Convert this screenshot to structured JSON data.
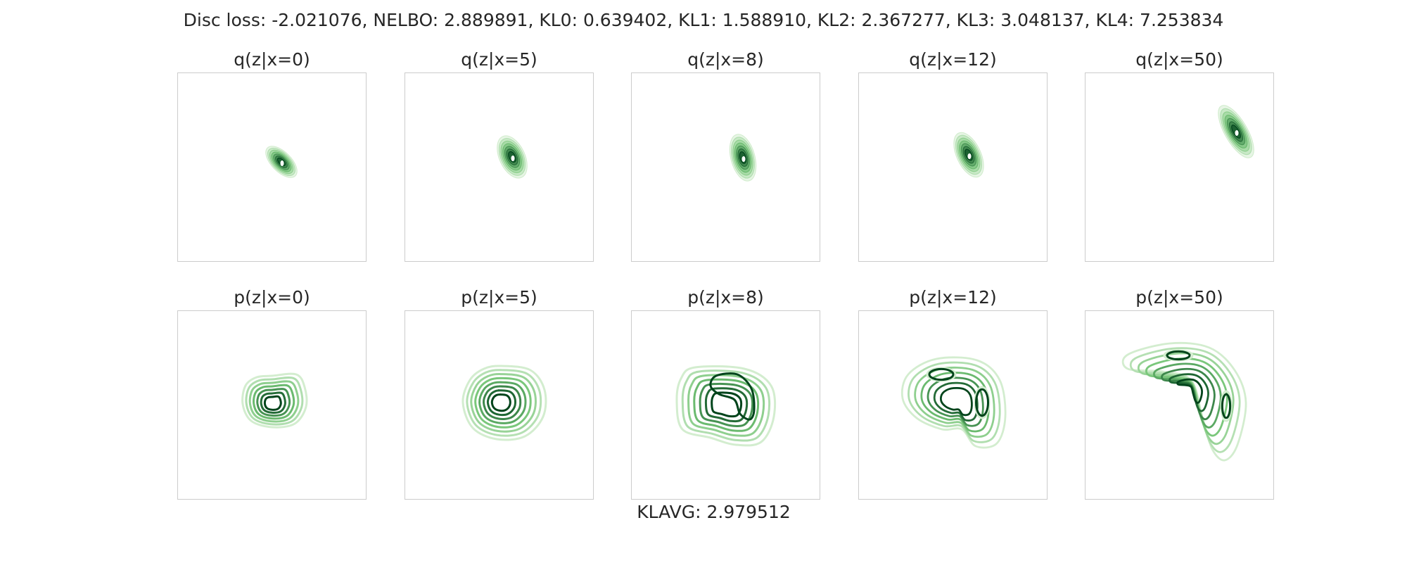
{
  "suptitle": "Disc loss: -2.021076, NELBO: 2.889891, KL0: 0.639402, KL1: 1.588910, KL2: 2.367277, KL3: 3.048137, KL4: 7.253834",
  "footer": "KLAVG: 2.979512",
  "colors": {
    "light": "#e5f5e0",
    "mid": "#74c476",
    "dark": "#00441b",
    "frame": "#cccccc"
  },
  "chart_data": [
    {
      "type": "contour",
      "title": "q(z|x=0)",
      "row": "q",
      "x_cond": 0
    },
    {
      "type": "contour",
      "title": "q(z|x=5)",
      "row": "q",
      "x_cond": 5
    },
    {
      "type": "contour",
      "title": "q(z|x=8)",
      "row": "q",
      "x_cond": 8
    },
    {
      "type": "contour",
      "title": "q(z|x=12)",
      "row": "q",
      "x_cond": 12
    },
    {
      "type": "contour",
      "title": "q(z|x=50)",
      "row": "q",
      "x_cond": 50
    },
    {
      "type": "contour",
      "title": "p(z|x=0)",
      "row": "p",
      "x_cond": 0
    },
    {
      "type": "contour",
      "title": "p(z|x=5)",
      "row": "p",
      "x_cond": 5
    },
    {
      "type": "contour",
      "title": "p(z|x=8)",
      "row": "p",
      "x_cond": 8
    },
    {
      "type": "contour",
      "title": "p(z|x=12)",
      "row": "p",
      "x_cond": 12
    },
    {
      "type": "contour",
      "title": "p(z|x=50)",
      "row": "p",
      "x_cond": 50
    }
  ]
}
